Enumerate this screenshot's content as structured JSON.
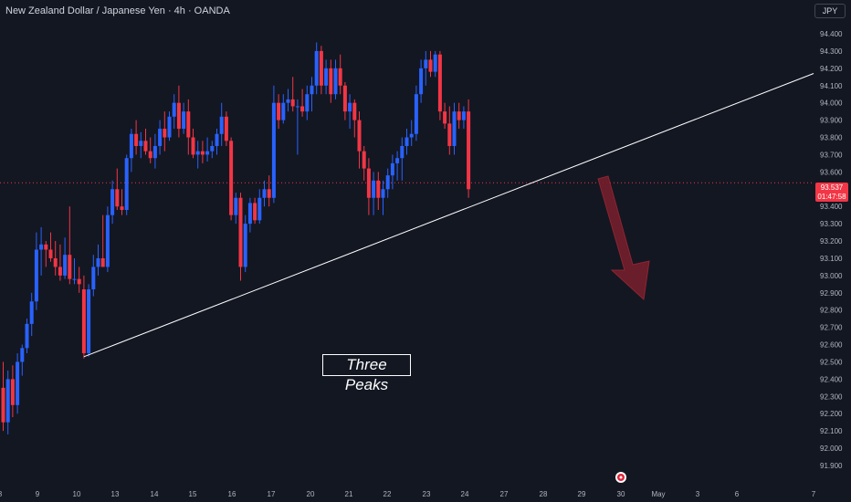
{
  "header": {
    "title": "New Zealand Dollar / Japanese Yen · 4h · OANDA"
  },
  "currency_button": {
    "label": "JPY"
  },
  "last_price": {
    "value": "93.537",
    "countdown": "01:47:58"
  },
  "annotation": {
    "text": "Three Peaks"
  },
  "colors": {
    "up": "#2962ff",
    "down": "#f23645",
    "background": "#131722",
    "trendline": "#ffffff",
    "arrow": "#7a1f2b"
  },
  "chart_data": {
    "type": "candlestick",
    "symbol": "NZDJPY",
    "timeframe": "4h",
    "y_ticks": [
      "91.900",
      "92.000",
      "92.100",
      "92.200",
      "92.300",
      "92.400",
      "92.500",
      "92.600",
      "92.700",
      "92.800",
      "92.900",
      "93.000",
      "93.100",
      "93.200",
      "93.300",
      "93.400",
      "93.500",
      "93.600",
      "93.700",
      "93.800",
      "93.900",
      "94.000",
      "94.100",
      "94.200",
      "94.300",
      "94.400"
    ],
    "x_ticks": [
      "8",
      "9",
      "10",
      "13",
      "14",
      "15",
      "16",
      "17",
      "20",
      "21",
      "22",
      "23",
      "24",
      "27",
      "28",
      "29",
      "30",
      "May",
      "3",
      "6",
      "7"
    ],
    "ylim": [
      91.87,
      94.47
    ],
    "candles": [
      {
        "o": 92.35,
        "h": 92.5,
        "l": 92.1,
        "c": 92.15
      },
      {
        "o": 92.15,
        "h": 92.45,
        "l": 92.08,
        "c": 92.4
      },
      {
        "o": 92.4,
        "h": 92.48,
        "l": 92.18,
        "c": 92.25
      },
      {
        "o": 92.25,
        "h": 92.55,
        "l": 92.2,
        "c": 92.5
      },
      {
        "o": 92.5,
        "h": 92.6,
        "l": 92.42,
        "c": 92.58
      },
      {
        "o": 92.58,
        "h": 92.75,
        "l": 92.55,
        "c": 92.72
      },
      {
        "o": 92.72,
        "h": 92.9,
        "l": 92.65,
        "c": 92.85
      },
      {
        "o": 92.85,
        "h": 93.25,
        "l": 92.8,
        "c": 93.15
      },
      {
        "o": 93.15,
        "h": 93.28,
        "l": 93.0,
        "c": 93.18
      },
      {
        "o": 93.18,
        "h": 93.2,
        "l": 93.05,
        "c": 93.15
      },
      {
        "o": 93.15,
        "h": 93.25,
        "l": 93.08,
        "c": 93.1
      },
      {
        "o": 93.1,
        "h": 93.2,
        "l": 93.0,
        "c": 93.05
      },
      {
        "o": 93.05,
        "h": 93.18,
        "l": 92.97,
        "c": 93.0
      },
      {
        "o": 93.0,
        "h": 93.22,
        "l": 92.98,
        "c": 93.12
      },
      {
        "o": 93.12,
        "h": 93.4,
        "l": 92.95,
        "c": 92.98
      },
      {
        "o": 92.98,
        "h": 93.1,
        "l": 92.95,
        "c": 92.98
      },
      {
        "o": 92.98,
        "h": 93.05,
        "l": 92.9,
        "c": 92.95
      },
      {
        "o": 92.92,
        "h": 93.0,
        "l": 92.52,
        "c": 92.55
      },
      {
        "o": 92.55,
        "h": 92.95,
        "l": 92.53,
        "c": 92.92
      },
      {
        "o": 92.92,
        "h": 93.12,
        "l": 92.88,
        "c": 93.05
      },
      {
        "o": 93.05,
        "h": 93.18,
        "l": 93.0,
        "c": 93.1
      },
      {
        "o": 93.1,
        "h": 93.35,
        "l": 93.05,
        "c": 93.05
      },
      {
        "o": 93.05,
        "h": 93.4,
        "l": 93.02,
        "c": 93.35
      },
      {
        "o": 93.35,
        "h": 93.55,
        "l": 93.3,
        "c": 93.5
      },
      {
        "o": 93.5,
        "h": 93.62,
        "l": 93.38,
        "c": 93.4
      },
      {
        "o": 93.4,
        "h": 93.5,
        "l": 93.35,
        "c": 93.38
      },
      {
        "o": 93.38,
        "h": 93.7,
        "l": 93.35,
        "c": 93.68
      },
      {
        "o": 93.68,
        "h": 93.85,
        "l": 93.6,
        "c": 93.82
      },
      {
        "o": 93.82,
        "h": 93.9,
        "l": 93.7,
        "c": 93.75
      },
      {
        "o": 93.75,
        "h": 93.83,
        "l": 93.68,
        "c": 93.78
      },
      {
        "o": 93.78,
        "h": 93.85,
        "l": 93.7,
        "c": 93.72
      },
      {
        "o": 93.72,
        "h": 93.8,
        "l": 93.65,
        "c": 93.68
      },
      {
        "o": 93.68,
        "h": 93.82,
        "l": 93.62,
        "c": 93.75
      },
      {
        "o": 93.75,
        "h": 93.9,
        "l": 93.7,
        "c": 93.85
      },
      {
        "o": 93.85,
        "h": 93.95,
        "l": 93.72,
        "c": 93.8
      },
      {
        "o": 93.8,
        "h": 93.95,
        "l": 93.78,
        "c": 93.92
      },
      {
        "o": 93.92,
        "h": 94.05,
        "l": 93.85,
        "c": 94.0
      },
      {
        "o": 94.0,
        "h": 94.1,
        "l": 93.8,
        "c": 93.85
      },
      {
        "o": 93.85,
        "h": 94.0,
        "l": 93.82,
        "c": 93.95
      },
      {
        "o": 93.95,
        "h": 94.02,
        "l": 93.7,
        "c": 93.8
      },
      {
        "o": 93.8,
        "h": 93.85,
        "l": 93.68,
        "c": 93.7
      },
      {
        "o": 93.7,
        "h": 93.78,
        "l": 93.62,
        "c": 93.72
      },
      {
        "o": 93.72,
        "h": 93.78,
        "l": 93.65,
        "c": 93.7
      },
      {
        "o": 93.7,
        "h": 93.8,
        "l": 93.66,
        "c": 93.72
      },
      {
        "o": 93.72,
        "h": 93.78,
        "l": 93.68,
        "c": 93.75
      },
      {
        "o": 93.75,
        "h": 93.85,
        "l": 93.7,
        "c": 93.82
      },
      {
        "o": 93.82,
        "h": 94.0,
        "l": 93.75,
        "c": 93.92
      },
      {
        "o": 93.92,
        "h": 93.95,
        "l": 93.75,
        "c": 93.78
      },
      {
        "o": 93.78,
        "h": 93.8,
        "l": 93.32,
        "c": 93.35
      },
      {
        "o": 93.35,
        "h": 93.48,
        "l": 93.3,
        "c": 93.45
      },
      {
        "o": 93.45,
        "h": 93.48,
        "l": 92.97,
        "c": 93.05
      },
      {
        "o": 93.05,
        "h": 93.35,
        "l": 93.02,
        "c": 93.3
      },
      {
        "o": 93.3,
        "h": 93.45,
        "l": 93.25,
        "c": 93.42
      },
      {
        "o": 93.42,
        "h": 93.45,
        "l": 93.3,
        "c": 93.32
      },
      {
        "o": 93.32,
        "h": 93.5,
        "l": 93.3,
        "c": 93.45
      },
      {
        "o": 93.45,
        "h": 93.55,
        "l": 93.4,
        "c": 93.5
      },
      {
        "o": 93.5,
        "h": 93.58,
        "l": 93.4,
        "c": 93.45
      },
      {
        "o": 93.45,
        "h": 94.1,
        "l": 93.42,
        "c": 94.0
      },
      {
        "o": 94.0,
        "h": 94.05,
        "l": 93.85,
        "c": 93.9
      },
      {
        "o": 93.9,
        "h": 94.05,
        "l": 93.88,
        "c": 94.0
      },
      {
        "o": 94.0,
        "h": 94.08,
        "l": 93.95,
        "c": 94.02
      },
      {
        "o": 94.02,
        "h": 94.15,
        "l": 93.95,
        "c": 93.98
      },
      {
        "o": 93.98,
        "h": 94.02,
        "l": 93.7,
        "c": 93.98
      },
      {
        "o": 93.98,
        "h": 94.08,
        "l": 93.92,
        "c": 93.95
      },
      {
        "o": 93.95,
        "h": 94.1,
        "l": 93.9,
        "c": 94.05
      },
      {
        "o": 94.05,
        "h": 94.15,
        "l": 93.95,
        "c": 94.1
      },
      {
        "o": 94.1,
        "h": 94.35,
        "l": 94.05,
        "c": 94.3
      },
      {
        "o": 94.3,
        "h": 94.33,
        "l": 94.05,
        "c": 94.1
      },
      {
        "o": 94.1,
        "h": 94.25,
        "l": 94.05,
        "c": 94.2
      },
      {
        "o": 94.2,
        "h": 94.25,
        "l": 94.0,
        "c": 94.05
      },
      {
        "o": 94.05,
        "h": 94.25,
        "l": 94.02,
        "c": 94.2
      },
      {
        "o": 94.2,
        "h": 94.28,
        "l": 94.05,
        "c": 94.1
      },
      {
        "o": 94.1,
        "h": 94.12,
        "l": 93.9,
        "c": 93.95
      },
      {
        "o": 93.95,
        "h": 94.05,
        "l": 93.85,
        "c": 94.0
      },
      {
        "o": 94.0,
        "h": 94.02,
        "l": 93.8,
        "c": 93.9
      },
      {
        "o": 93.9,
        "h": 93.95,
        "l": 93.62,
        "c": 93.72
      },
      {
        "o": 93.72,
        "h": 93.75,
        "l": 93.55,
        "c": 93.62
      },
      {
        "o": 93.62,
        "h": 93.68,
        "l": 93.35,
        "c": 93.45
      },
      {
        "o": 93.45,
        "h": 93.6,
        "l": 93.35,
        "c": 93.55
      },
      {
        "o": 93.55,
        "h": 93.6,
        "l": 93.38,
        "c": 93.45
      },
      {
        "o": 93.45,
        "h": 93.55,
        "l": 93.35,
        "c": 93.5
      },
      {
        "o": 93.5,
        "h": 93.62,
        "l": 93.45,
        "c": 93.58
      },
      {
        "o": 93.58,
        "h": 93.7,
        "l": 93.5,
        "c": 93.65
      },
      {
        "o": 93.65,
        "h": 93.72,
        "l": 93.55,
        "c": 93.68
      },
      {
        "o": 93.68,
        "h": 93.8,
        "l": 93.55,
        "c": 93.75
      },
      {
        "o": 93.75,
        "h": 93.85,
        "l": 93.7,
        "c": 93.8
      },
      {
        "o": 93.8,
        "h": 93.9,
        "l": 93.75,
        "c": 93.82
      },
      {
        "o": 93.82,
        "h": 94.1,
        "l": 93.78,
        "c": 94.05
      },
      {
        "o": 94.05,
        "h": 94.25,
        "l": 94.0,
        "c": 94.2
      },
      {
        "o": 94.2,
        "h": 94.3,
        "l": 94.1,
        "c": 94.25
      },
      {
        "o": 94.25,
        "h": 94.3,
        "l": 94.15,
        "c": 94.18
      },
      {
        "o": 94.18,
        "h": 94.3,
        "l": 94.15,
        "c": 94.28
      },
      {
        "o": 94.28,
        "h": 94.3,
        "l": 93.9,
        "c": 93.95
      },
      {
        "o": 93.95,
        "h": 94.0,
        "l": 93.85,
        "c": 93.88
      },
      {
        "o": 93.88,
        "h": 93.98,
        "l": 93.7,
        "c": 93.75
      },
      {
        "o": 93.75,
        "h": 94.0,
        "l": 93.7,
        "c": 93.95
      },
      {
        "o": 93.95,
        "h": 94.0,
        "l": 93.85,
        "c": 93.9
      },
      {
        "o": 93.9,
        "h": 93.98,
        "l": 93.85,
        "c": 93.95
      },
      {
        "o": 93.95,
        "h": 94.02,
        "l": 93.45,
        "c": 93.5
      }
    ],
    "trendline": {
      "from": {
        "bar": 17,
        "price": 92.53
      },
      "to": {
        "bar": 141,
        "price": 94.17
      }
    },
    "current_price": 93.537,
    "grid": false
  }
}
